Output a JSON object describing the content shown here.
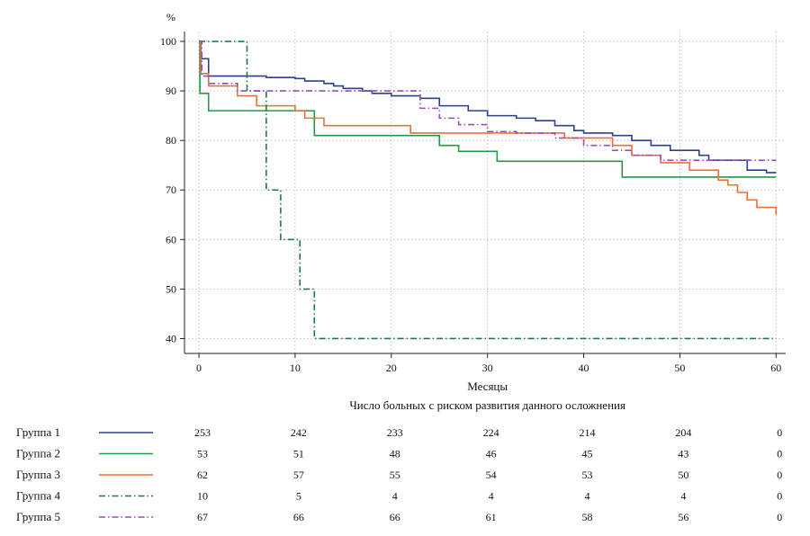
{
  "chart_data": {
    "type": "line",
    "title": "",
    "y_unit": "%",
    "xlabel": "Месяцы",
    "ylabel": "",
    "xlim": [
      -1.5,
      61
    ],
    "ylim": [
      37,
      102
    ],
    "x_ticks": [
      0,
      10,
      20,
      30,
      40,
      50,
      60
    ],
    "y_ticks": [
      40,
      50,
      60,
      70,
      80,
      90,
      100
    ],
    "grid": true,
    "series": [
      {
        "name": "Группа 1",
        "color": "#2e3f8f",
        "dash": "solid",
        "points": [
          [
            0,
            100
          ],
          [
            0.2,
            96.5
          ],
          [
            1,
            93
          ],
          [
            5,
            93
          ],
          [
            7,
            92.7
          ],
          [
            10,
            92.5
          ],
          [
            11,
            92
          ],
          [
            13,
            91.5
          ],
          [
            14,
            91
          ],
          [
            15,
            90.5
          ],
          [
            17,
            90
          ],
          [
            18,
            89.5
          ],
          [
            20,
            89
          ],
          [
            23,
            88.5
          ],
          [
            25,
            87
          ],
          [
            28,
            86
          ],
          [
            30,
            85
          ],
          [
            33,
            84.5
          ],
          [
            35,
            84
          ],
          [
            37,
            83
          ],
          [
            39,
            82
          ],
          [
            40,
            81.5
          ],
          [
            43,
            81
          ],
          [
            45,
            80
          ],
          [
            47,
            79
          ],
          [
            49,
            78
          ],
          [
            52,
            77
          ],
          [
            53,
            76
          ],
          [
            57,
            74
          ],
          [
            59,
            73.5
          ],
          [
            60,
            73.5
          ]
        ]
      },
      {
        "name": "Группа 2",
        "color": "#1f9a4b",
        "dash": "solid",
        "points": [
          [
            0,
            100
          ],
          [
            0.1,
            89.5
          ],
          [
            1,
            86
          ],
          [
            12,
            81
          ],
          [
            25,
            79
          ],
          [
            27,
            77.8
          ],
          [
            31,
            75.8
          ],
          [
            44,
            72.6
          ],
          [
            60,
            72.6
          ]
        ]
      },
      {
        "name": "Группа 3",
        "color": "#e8703f",
        "dash": "solid",
        "points": [
          [
            0,
            100
          ],
          [
            0.2,
            93.5
          ],
          [
            1,
            91
          ],
          [
            4,
            89
          ],
          [
            6,
            87
          ],
          [
            10,
            86
          ],
          [
            11,
            84.5
          ],
          [
            13,
            83
          ],
          [
            22,
            81.5
          ],
          [
            38,
            80.5
          ],
          [
            43,
            79
          ],
          [
            45,
            77
          ],
          [
            48,
            75.5
          ],
          [
            51,
            74
          ],
          [
            54,
            72
          ],
          [
            55,
            71
          ],
          [
            56,
            69.5
          ],
          [
            57,
            68
          ],
          [
            58,
            66.5
          ],
          [
            60,
            65
          ]
        ]
      },
      {
        "name": "Группа 4",
        "color": "#1f7a46",
        "dash": "dashdot",
        "points": [
          [
            0,
            100
          ],
          [
            5,
            100
          ],
          [
            5,
            90
          ],
          [
            7,
            80
          ],
          [
            7,
            70
          ],
          [
            8.5,
            70
          ],
          [
            8.5,
            60
          ],
          [
            10.5,
            60
          ],
          [
            10.5,
            50
          ],
          [
            12,
            50
          ],
          [
            12,
            40
          ],
          [
            60,
            40
          ]
        ]
      },
      {
        "name": "Группа 5",
        "color": "#9a4fb0",
        "dash": "dashdot",
        "points": [
          [
            0,
            100
          ],
          [
            0.3,
            93
          ],
          [
            1,
            91.5
          ],
          [
            4,
            90
          ],
          [
            10,
            90
          ],
          [
            22,
            90
          ],
          [
            23,
            86.5
          ],
          [
            25,
            84.5
          ],
          [
            27,
            83.2
          ],
          [
            30,
            81.8
          ],
          [
            33,
            81.5
          ],
          [
            37,
            80.5
          ],
          [
            40,
            79
          ],
          [
            43,
            78
          ],
          [
            45,
            77
          ],
          [
            48,
            76
          ],
          [
            50,
            76
          ],
          [
            60,
            76
          ]
        ]
      }
    ],
    "risk_table": {
      "title": "Число больных с риском развития данного осложнения",
      "x": [
        0,
        10,
        20,
        30,
        40,
        50,
        60
      ],
      "rows": [
        {
          "name": "Группа 1",
          "values": [
            253,
            242,
            233,
            224,
            214,
            204,
            0
          ]
        },
        {
          "name": "Группа 2",
          "values": [
            53,
            51,
            48,
            46,
            45,
            43,
            0
          ]
        },
        {
          "name": "Группа 3",
          "values": [
            62,
            57,
            55,
            54,
            53,
            50,
            0
          ]
        },
        {
          "name": "Группа 4",
          "values": [
            10,
            5,
            4,
            4,
            4,
            4,
            0
          ]
        },
        {
          "name": "Группа 5",
          "values": [
            67,
            66,
            66,
            61,
            58,
            56,
            0
          ]
        }
      ]
    }
  }
}
